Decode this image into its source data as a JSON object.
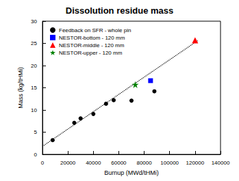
{
  "chart_data": {
    "type": "scatter",
    "title": "Dissolution residue mass",
    "x_label": "Burnup (MWd/tHMi)",
    "y_label": "Mass (kg/tHMi)",
    "xlim": [
      0,
      140000
    ],
    "xticks": [
      0,
      20000,
      40000,
      60000,
      80000,
      100000,
      120000,
      140000
    ],
    "ylim": [
      0,
      30
    ],
    "yticks": [
      0,
      5,
      10,
      15,
      20,
      25,
      30
    ],
    "grid": false,
    "legend": "upper left",
    "series": [
      {
        "name": "Feedback on SFR - whole pin",
        "color": "#000000",
        "marker": "circle",
        "x": [
          8000,
          25000,
          30000,
          40000,
          50000,
          56000,
          70000,
          88000
        ],
        "values": [
          3.2,
          7.1,
          8.1,
          9.1,
          11.4,
          12.2,
          12.1,
          14.2
        ]
      },
      {
        "name": "NESTOR-bottom - 120 mm",
        "color": "#0000ff",
        "marker": "square",
        "x": [
          85000
        ],
        "values": [
          16.6
        ]
      },
      {
        "name": "NESTOR-middle - 120 mm",
        "color": "#ff0000",
        "marker": "triangle",
        "x": [
          120000
        ],
        "values": [
          25.7
        ]
      },
      {
        "name": "NESTOR-upper - 120 mm",
        "color": "#008000",
        "marker": "star",
        "x": [
          73000
        ],
        "values": [
          15.7
        ]
      },
      {
        "type": "line",
        "color": "#000000",
        "line_style": "dotted",
        "x": [
          0,
          122000
        ],
        "values": [
          1.8,
          25.6
        ]
      }
    ]
  }
}
